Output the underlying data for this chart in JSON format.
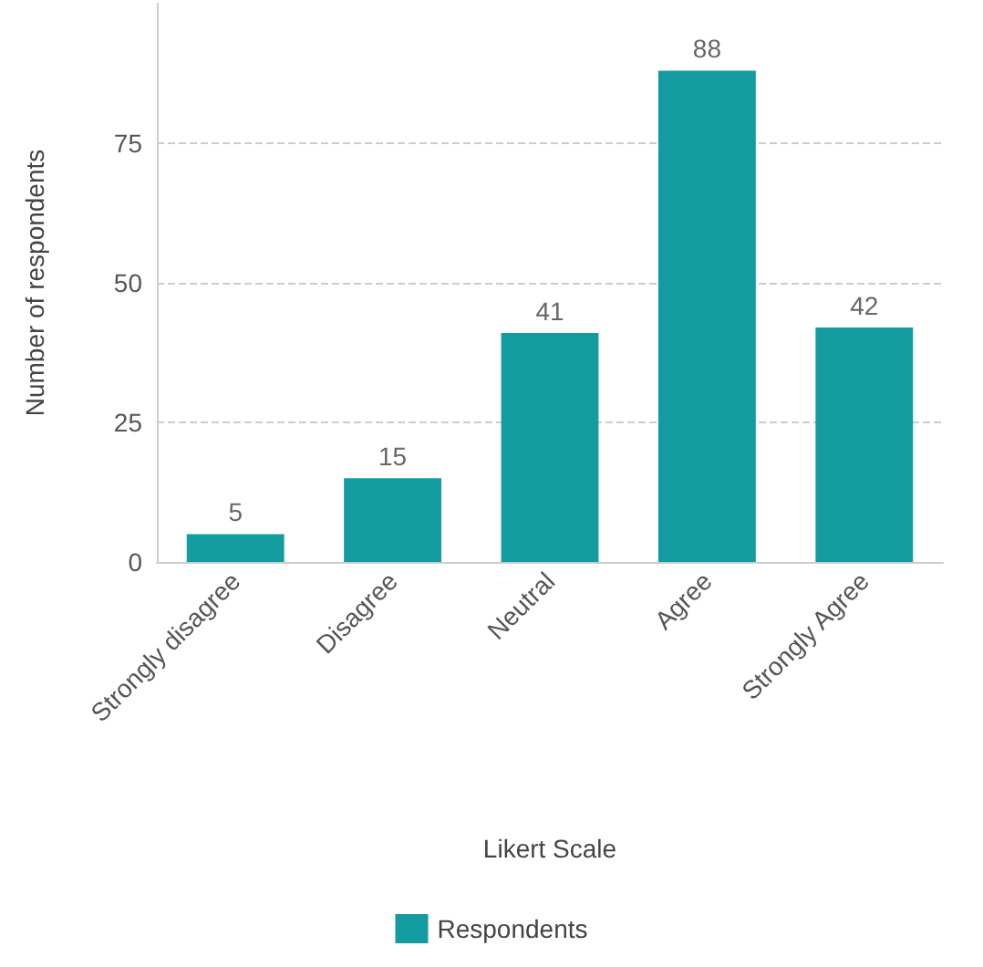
{
  "chart_data": {
    "type": "bar",
    "xlabel": "Likert Scale",
    "ylabel": "Number of respondents",
    "categories": [
      "Strongly disagree",
      "Disagree",
      "Neutral",
      "Agree",
      "Strongly Agree"
    ],
    "series": [
      {
        "name": "Respondents",
        "color": "#139c9f",
        "values": [
          5,
          15,
          41,
          88,
          42
        ]
      }
    ],
    "ylim": [
      0,
      100
    ],
    "yticks": [
      0,
      25,
      50,
      75
    ],
    "grid": "y",
    "legend": "bottom",
    "data_labels": true
  }
}
